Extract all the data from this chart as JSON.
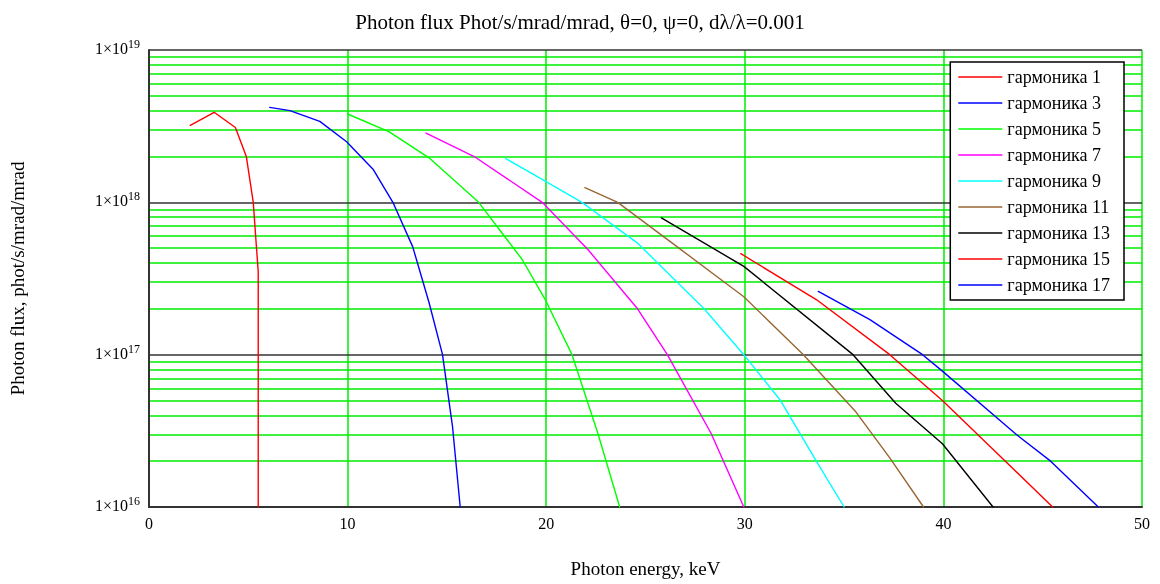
{
  "chart_data": {
    "type": "line",
    "title": "Photon flux Phot/s/mrad/mrad, θ=0, ψ=0, dλ/λ=0.001",
    "xlabel": "Photon energy, keV",
    "ylabel": "Photon flux, phot/s/mrad/mrad",
    "log": "y",
    "grid": true,
    "legend": "top right",
    "marker": "none",
    "line_style": "solid",
    "xlim": [
      0,
      50
    ],
    "xticks": [
      0,
      10,
      20,
      30,
      40,
      50
    ],
    "ylim": [
      1e+16,
      1e+19
    ],
    "yticks": [
      {
        "value": 1e+16,
        "label": "1×10$^{16}$"
      },
      {
        "value": 1e+17,
        "label": "1×10$^{17}$"
      },
      {
        "value": 1e+18,
        "label": "1×10$^{18}$"
      },
      {
        "value": 1e+19,
        "label": "1×10$^{19}$"
      }
    ],
    "series": [
      {
        "name": "гармоника 1",
        "color": "#ff0000",
        "x": [
          2.08,
          3.28,
          4.35,
          4.9,
          5.25,
          5.37,
          5.5,
          5.5
        ],
        "values": [
          3.2e+18,
          3.9e+18,
          3.1e+18,
          2e+18,
          1e+18,
          6e+17,
          3.5e+17,
          1e+16
        ]
      },
      {
        "name": "гармоника 3",
        "color": "#0000ff",
        "x": [
          6.08,
          7.1,
          8.6,
          9.95,
          11.28,
          12.28,
          13.28,
          14.1,
          14.78,
          15.28,
          15.67
        ],
        "values": [
          4.2e+18,
          4e+18,
          3.4e+18,
          2.5e+18,
          1.65e+18,
          1e+18,
          5.1e+17,
          2.2e+17,
          1e+17,
          3.4e+16,
          1e+16
        ]
      },
      {
        "name": "гармоника 5",
        "color": "#00ff00",
        "x": [
          10.0,
          12.1,
          14.1,
          16.6,
          18.8,
          19.95,
          21.3,
          22.6,
          23.7
        ],
        "values": [
          3.8e+18,
          2.9e+18,
          1.96e+18,
          1e+18,
          4.2e+17,
          2.3e+17,
          1e+17,
          3.05e+16,
          1e+16
        ]
      },
      {
        "name": "гармоника 7",
        "color": "#ff00ff",
        "x": [
          13.95,
          16.45,
          19.8,
          22.1,
          24.6,
          26.1,
          28.3,
          29.95
        ],
        "values": [
          2.85e+18,
          1.97e+18,
          1e+18,
          4.9e+17,
          2e+17,
          1e+17,
          3.05e+16,
          1e+16
        ]
      },
      {
        "name": "гармоника 9",
        "color": "#00ffff",
        "x": [
          17.95,
          19.95,
          21.8,
          24.6,
          27.95,
          29.95,
          31.8,
          33.6,
          35.0
        ],
        "values": [
          1.94e+18,
          1.38e+18,
          1e+18,
          5.4e+17,
          2e+17,
          1e+17,
          5e+16,
          2e+16,
          1e+16
        ]
      },
      {
        "name": "гармоника 11",
        "color": "#996633",
        "x": [
          21.95,
          23.6,
          26.6,
          29.95,
          32.95,
          35.6,
          37.3,
          39.0
        ],
        "values": [
          1.25e+18,
          1e+18,
          5.1e+17,
          2.4e+17,
          1e+17,
          4.2e+16,
          2.1e+16,
          1e+16
        ]
      },
      {
        "name": "гармоника 13",
        "color": "#000000",
        "x": [
          25.8,
          29.95,
          35.45,
          37.6,
          39.95,
          42.5
        ],
        "values": [
          7.9e+17,
          3.8e+17,
          1e+17,
          4.8e+16,
          2.6e+16,
          1e+16
        ]
      },
      {
        "name": "гармоника 15",
        "color": "#ff0000",
        "x": [
          29.8,
          33.6,
          37.3,
          39.95,
          42.95,
          45.5
        ],
        "values": [
          4.6e+17,
          2.3e+17,
          1e+17,
          5e+16,
          2.1e+16,
          1e+16
        ]
      },
      {
        "name": "гармоника 17",
        "color": "#0000ff",
        "x": [
          33.7,
          36.3,
          38.95,
          39.95,
          43.8,
          45.4,
          47.8
        ],
        "values": [
          2.6e+17,
          1.7e+17,
          1e+17,
          7.8e+16,
          2.9e+16,
          2e+16,
          1e+16
        ]
      }
    ]
  }
}
